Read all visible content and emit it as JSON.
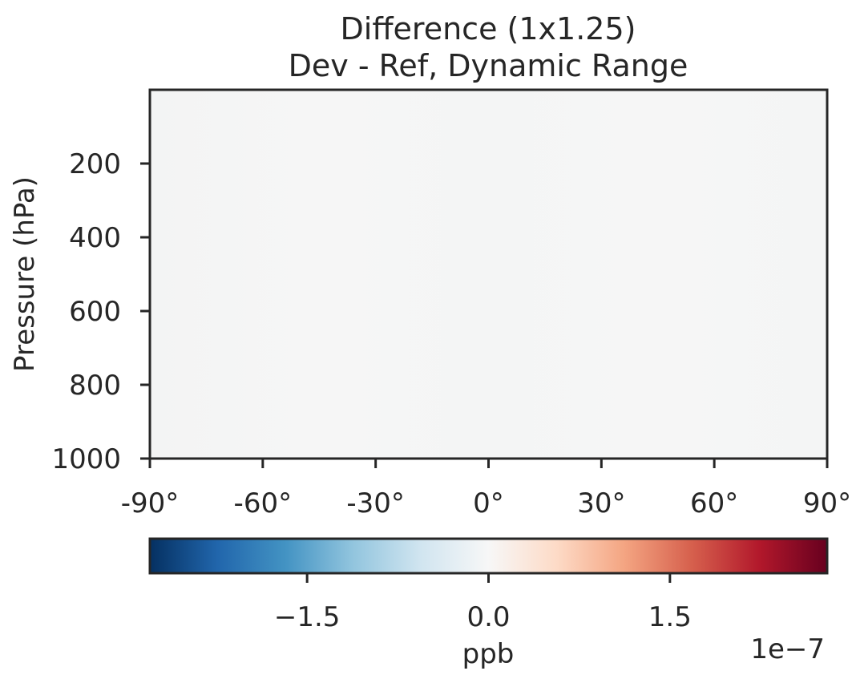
{
  "chart_data": {
    "type": "heatmap",
    "title_lines": [
      "Difference (1x1.25)",
      "Dev - Ref, Dynamic Range"
    ],
    "xlabel": "",
    "ylabel": "Pressure (hPa)",
    "x_axis": {
      "range": [
        -90,
        90
      ],
      "ticks": [
        -90,
        -60,
        -30,
        0,
        30,
        60,
        90
      ],
      "tick_labels": [
        "-90°",
        "-60°",
        "-30°",
        "0°",
        "30°",
        "60°",
        "90°"
      ]
    },
    "y_axis": {
      "range": [
        0,
        1000
      ],
      "inverted": true,
      "ticks": [
        200,
        400,
        600,
        800,
        1000
      ],
      "tick_labels": [
        "200",
        "400",
        "600",
        "800",
        "1000"
      ]
    },
    "field_description": "values near zero everywhere",
    "field_value": 0.0,
    "grid": false,
    "colorbar": {
      "colormap": "RdBu_r",
      "orientation": "horizontal",
      "range": [
        -2.8,
        2.8
      ],
      "ticks": [
        -1.5,
        0.0,
        1.5
      ],
      "tick_labels": [
        "−1.5",
        "0.0",
        "1.5"
      ],
      "label": "ppb",
      "offset_label": "1e−7",
      "colors": [
        "#053061",
        "#2166ac",
        "#4393c3",
        "#92c5de",
        "#d1e5f0",
        "#f7f7f7",
        "#fddbc7",
        "#f4a582",
        "#d6604d",
        "#b2182b",
        "#67001f"
      ]
    },
    "field_color": "#f5f6f6",
    "spine_color": "#262626"
  }
}
